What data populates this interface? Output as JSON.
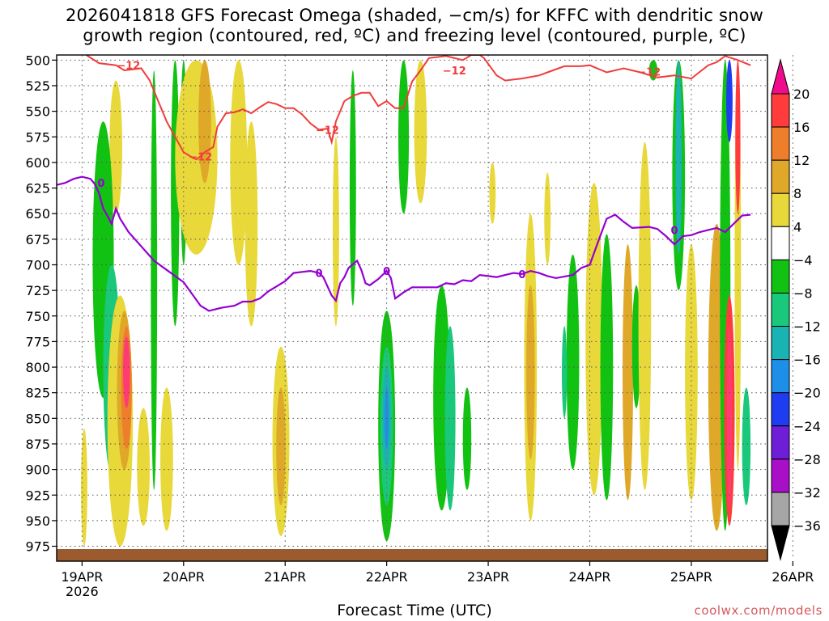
{
  "chart_data": {
    "type": "heatmap",
    "title_line1": "2026041818 GFS Forecast Omega (shaded, −cm/s) for KFFC with dendritic snow",
    "title_line2": "growth region (contoured, red, ºC) and freezing level (contoured, purple, ºC)",
    "xlabel": "Forecast Time (UTC)",
    "x_year": "2026",
    "x_ticks": [
      "19APR",
      "20APR",
      "21APR",
      "22APR",
      "23APR",
      "24APR",
      "25APR",
      "26APR"
    ],
    "xlim_hours": [
      -6,
      162
    ],
    "y_ticks": [
      "500",
      "525",
      "550",
      "575",
      "600",
      "625",
      "650",
      "675",
      "700",
      "725",
      "750",
      "775",
      "800",
      "825",
      "850",
      "875",
      "900",
      "925",
      "950",
      "975"
    ],
    "ylim_hpa": [
      495,
      988
    ],
    "colorbar": {
      "levels": [
        "20",
        "16",
        "12",
        "8",
        "4",
        "−4",
        "−8",
        "−12",
        "−16",
        "−20",
        "−24",
        "−28",
        "−32",
        "−36"
      ],
      "colors": [
        "#ff3b73",
        "#ff3b3b",
        "#ee7e2c",
        "#e0a828",
        "#e8d83a",
        "#ffffff",
        "#12c212",
        "#19c87a",
        "#19b3b3",
        "#1e8fe8",
        "#1e3cf0",
        "#6e1ed7",
        "#aa0fc8",
        "#a6a6a6",
        "#000000"
      ],
      "top_arrow_color": "#f00a8c",
      "bottom_arrow_color": "#000000"
    },
    "omega_regions": [
      {
        "t": 0.5,
        "p0": 860,
        "p1": 975,
        "w": 1.5,
        "color": "#e8d83a"
      },
      {
        "t": 8,
        "p0": 520,
        "p1": 650,
        "w": 3,
        "color": "#e8d83a"
      },
      {
        "t": 5,
        "p0": 560,
        "p1": 830,
        "w": 5,
        "color": "#12c212"
      },
      {
        "t": 7,
        "p0": 700,
        "p1": 905,
        "w": 4,
        "color": "#19c87a"
      },
      {
        "t": 9,
        "p0": 730,
        "p1": 975,
        "w": 6,
        "color": "#e8d83a"
      },
      {
        "t": 10,
        "p0": 745,
        "p1": 900,
        "w": 3.5,
        "color": "#e0a828"
      },
      {
        "t": 10.5,
        "p0": 760,
        "p1": 880,
        "w": 2.5,
        "color": "#ee7e2c"
      },
      {
        "t": 10.5,
        "p0": 770,
        "p1": 840,
        "w": 1.6,
        "color": "#ff3b73"
      },
      {
        "t": 14.5,
        "p0": 840,
        "p1": 955,
        "w": 3,
        "color": "#e8d83a"
      },
      {
        "t": 20,
        "p0": 820,
        "p1": 960,
        "w": 3,
        "color": "#e8d83a"
      },
      {
        "t": 17,
        "p0": 510,
        "p1": 920,
        "w": 1.5,
        "color": "#12c212"
      },
      {
        "t": 22,
        "p0": 500,
        "p1": 760,
        "w": 2,
        "color": "#12c212"
      },
      {
        "t": 24,
        "p0": 500,
        "p1": 700,
        "w": 1.5,
        "color": "#12c212"
      },
      {
        "t": 27,
        "p0": 500,
        "p1": 690,
        "w": 10,
        "color": "#e8d83a"
      },
      {
        "t": 29,
        "p0": 500,
        "p1": 620,
        "w": 3,
        "color": "#e0a828"
      },
      {
        "t": 37,
        "p0": 500,
        "p1": 700,
        "w": 4,
        "color": "#e8d83a"
      },
      {
        "t": 40,
        "p0": 560,
        "p1": 760,
        "w": 3,
        "color": "#e8d83a"
      },
      {
        "t": 47,
        "p0": 780,
        "p1": 965,
        "w": 4,
        "color": "#e8d83a"
      },
      {
        "t": 47,
        "p0": 820,
        "p1": 935,
        "w": 2.2,
        "color": "#e0a828"
      },
      {
        "t": 60,
        "p0": 575,
        "p1": 760,
        "w": 1.5,
        "color": "#e8d83a"
      },
      {
        "t": 64,
        "p0": 510,
        "p1": 740,
        "w": 1.5,
        "color": "#12c212"
      },
      {
        "t": 72,
        "p0": 745,
        "p1": 970,
        "w": 4,
        "color": "#12c212"
      },
      {
        "t": 72,
        "p0": 780,
        "p1": 935,
        "w": 3,
        "color": "#19c87a"
      },
      {
        "t": 72,
        "p0": 800,
        "p1": 900,
        "w": 2,
        "color": "#19b3b3"
      },
      {
        "t": 72,
        "p0": 820,
        "p1": 880,
        "w": 1,
        "color": "#1e8fe8"
      },
      {
        "t": 76,
        "p0": 500,
        "p1": 650,
        "w": 2.5,
        "color": "#12c212"
      },
      {
        "t": 80,
        "p0": 500,
        "p1": 640,
        "w": 3,
        "color": "#e8d83a"
      },
      {
        "t": 85,
        "p0": 720,
        "p1": 940,
        "w": 4,
        "color": "#12c212"
      },
      {
        "t": 87,
        "p0": 760,
        "p1": 940,
        "w": 2.5,
        "color": "#19c87a"
      },
      {
        "t": 91,
        "p0": 820,
        "p1": 920,
        "w": 2,
        "color": "#12c212"
      },
      {
        "t": 97,
        "p0": 600,
        "p1": 660,
        "w": 1.5,
        "color": "#e8d83a"
      },
      {
        "t": 106,
        "p0": 650,
        "p1": 950,
        "w": 3,
        "color": "#e8d83a"
      },
      {
        "t": 106,
        "p0": 720,
        "p1": 890,
        "w": 2,
        "color": "#e0a828"
      },
      {
        "t": 110,
        "p0": 610,
        "p1": 700,
        "w": 1.5,
        "color": "#e8d83a"
      },
      {
        "t": 116,
        "p0": 690,
        "p1": 900,
        "w": 3,
        "color": "#12c212"
      },
      {
        "t": 114,
        "p0": 760,
        "p1": 850,
        "w": 1.2,
        "color": "#19c87a"
      },
      {
        "t": 121,
        "p0": 620,
        "p1": 925,
        "w": 4,
        "color": "#e8d83a"
      },
      {
        "t": 124,
        "p0": 670,
        "p1": 930,
        "w": 3,
        "color": "#12c212"
      },
      {
        "t": 129,
        "p0": 680,
        "p1": 930,
        "w": 2.5,
        "color": "#e0a828"
      },
      {
        "t": 131,
        "p0": 720,
        "p1": 840,
        "w": 2,
        "color": "#12c212"
      },
      {
        "t": 133,
        "p0": 580,
        "p1": 920,
        "w": 3,
        "color": "#e8d83a"
      },
      {
        "t": 135,
        "p0": 500,
        "p1": 520,
        "w": 2,
        "color": "#12c212"
      },
      {
        "t": 141,
        "p0": 500,
        "p1": 725,
        "w": 3,
        "color": "#12c212"
      },
      {
        "t": 141,
        "p0": 500,
        "p1": 690,
        "w": 1.5,
        "color": "#19b3b3"
      },
      {
        "t": 144,
        "p0": 680,
        "p1": 930,
        "w": 3,
        "color": "#e8d83a"
      },
      {
        "t": 150,
        "p0": 660,
        "p1": 960,
        "w": 4,
        "color": "#e0a828"
      },
      {
        "t": 152,
        "p0": 500,
        "p1": 960,
        "w": 2.5,
        "color": "#12c212"
      },
      {
        "t": 153,
        "p0": 730,
        "p1": 955,
        "w": 2.5,
        "color": "#ff3b3b"
      },
      {
        "t": 153,
        "p0": 760,
        "p1": 940,
        "w": 1.2,
        "color": "#ff3b73"
      },
      {
        "t": 153,
        "p0": 500,
        "p1": 580,
        "w": 1.5,
        "color": "#1e3cf0"
      },
      {
        "t": 155,
        "p0": 500,
        "p1": 900,
        "w": 1.5,
        "color": "#e8d83a"
      },
      {
        "t": 155,
        "p0": 500,
        "p1": 650,
        "w": 1.2,
        "color": "#ff3b3b"
      },
      {
        "t": 157,
        "p0": 820,
        "p1": 935,
        "w": 2,
        "color": "#19c87a"
      }
    ],
    "contour_minus12": {
      "label": "−12",
      "color": "#f03c3c",
      "points": [
        [
          1,
          495
        ],
        [
          4,
          503
        ],
        [
          8,
          505
        ],
        [
          10,
          510
        ],
        [
          14,
          508
        ],
        [
          16,
          520
        ],
        [
          18,
          540
        ],
        [
          20,
          560
        ],
        [
          22,
          575
        ],
        [
          24,
          590
        ],
        [
          26,
          595
        ],
        [
          27,
          597
        ],
        [
          28,
          594
        ],
        [
          29,
          590
        ],
        [
          31,
          585
        ],
        [
          32,
          565
        ],
        [
          34,
          552
        ],
        [
          36,
          551
        ],
        [
          38,
          548
        ],
        [
          40,
          552
        ],
        [
          42,
          546
        ],
        [
          44,
          541
        ],
        [
          46,
          543
        ],
        [
          48,
          547
        ],
        [
          50,
          547
        ],
        [
          52,
          553
        ],
        [
          54,
          562
        ],
        [
          56,
          568
        ],
        [
          58,
          567
        ],
        [
          59,
          580
        ],
        [
          60,
          560
        ],
        [
          62,
          540
        ],
        [
          64,
          535
        ],
        [
          66,
          532
        ],
        [
          68,
          532
        ],
        [
          70,
          545
        ],
        [
          72,
          540
        ],
        [
          74,
          547
        ],
        [
          76,
          547
        ],
        [
          78,
          521
        ],
        [
          80,
          510
        ],
        [
          82,
          498
        ],
        [
          86,
          496
        ],
        [
          90,
          500
        ],
        [
          92,
          495
        ],
        [
          94,
          495
        ],
        [
          95,
          498
        ],
        [
          98,
          515
        ],
        [
          100,
          520
        ],
        [
          104,
          518
        ],
        [
          108,
          515
        ],
        [
          110,
          512
        ],
        [
          114,
          506
        ],
        [
          118,
          506
        ],
        [
          120,
          505
        ],
        [
          124,
          512
        ],
        [
          128,
          508
        ],
        [
          132,
          512
        ],
        [
          136,
          517
        ],
        [
          140,
          515
        ],
        [
          144,
          518
        ],
        [
          148,
          505
        ],
        [
          150,
          502
        ],
        [
          152,
          496
        ],
        [
          155,
          500
        ],
        [
          158,
          505
        ]
      ],
      "label_points": [
        [
          11,
          505
        ],
        [
          28,
          594
        ],
        [
          58,
          568
        ],
        [
          88,
          510
        ],
        [
          134,
          511
        ]
      ]
    },
    "contour_zero": {
      "label": "0",
      "color": "#9400d3",
      "points": [
        [
          -6,
          622
        ],
        [
          -4,
          620
        ],
        [
          -2,
          616
        ],
        [
          0,
          614
        ],
        [
          2,
          616
        ],
        [
          3,
          621
        ],
        [
          4,
          630
        ],
        [
          5,
          645
        ],
        [
          6,
          652
        ],
        [
          7,
          660
        ],
        [
          8,
          645
        ],
        [
          9,
          655
        ],
        [
          11,
          668
        ],
        [
          14,
          682
        ],
        [
          17,
          696
        ],
        [
          20,
          705
        ],
        [
          24,
          717
        ],
        [
          28,
          740
        ],
        [
          30,
          745
        ],
        [
          33,
          742
        ],
        [
          36,
          740
        ],
        [
          38,
          736
        ],
        [
          40,
          736
        ],
        [
          42,
          733
        ],
        [
          44,
          726
        ],
        [
          46,
          721
        ],
        [
          48,
          716
        ],
        [
          50,
          708
        ],
        [
          52,
          707
        ],
        [
          54,
          706
        ],
        [
          56,
          708
        ],
        [
          57,
          712
        ],
        [
          58,
          721
        ],
        [
          59,
          730
        ],
        [
          60,
          735
        ],
        [
          61,
          718
        ],
        [
          62,
          712
        ],
        [
          63,
          703
        ],
        [
          65,
          696
        ],
        [
          66,
          705
        ],
        [
          67,
          718
        ],
        [
          68,
          720
        ],
        [
          70,
          714
        ],
        [
          71,
          710
        ],
        [
          72,
          706
        ],
        [
          73,
          713
        ],
        [
          74,
          733
        ],
        [
          76,
          727
        ],
        [
          78,
          722
        ],
        [
          80,
          722
        ],
        [
          84,
          722
        ],
        [
          86,
          718
        ],
        [
          88,
          719
        ],
        [
          90,
          715
        ],
        [
          92,
          716
        ],
        [
          94,
          710
        ],
        [
          96,
          711
        ],
        [
          98,
          712
        ],
        [
          100,
          710
        ],
        [
          102,
          708
        ],
        [
          104,
          709
        ],
        [
          106,
          706
        ],
        [
          108,
          708
        ],
        [
          110,
          711
        ],
        [
          112,
          713
        ],
        [
          116,
          710
        ],
        [
          118,
          703
        ],
        [
          120,
          700
        ],
        [
          122,
          677
        ],
        [
          124,
          655
        ],
        [
          126,
          651
        ],
        [
          128,
          658
        ],
        [
          130,
          664
        ],
        [
          134,
          663
        ],
        [
          136,
          665
        ],
        [
          138,
          672
        ],
        [
          140,
          680
        ],
        [
          142,
          672
        ],
        [
          144,
          671
        ],
        [
          146,
          668
        ],
        [
          148,
          666
        ],
        [
          150,
          664
        ],
        [
          152,
          668
        ],
        [
          154,
          660
        ],
        [
          156,
          652
        ],
        [
          158,
          651
        ]
      ],
      "label_points": [
        [
          4.5,
          620
        ],
        [
          56,
          708
        ],
        [
          72,
          706
        ],
        [
          104,
          709
        ],
        [
          140,
          666
        ]
      ]
    }
  },
  "footer": {
    "watermark": "coolwx.com/models"
  }
}
